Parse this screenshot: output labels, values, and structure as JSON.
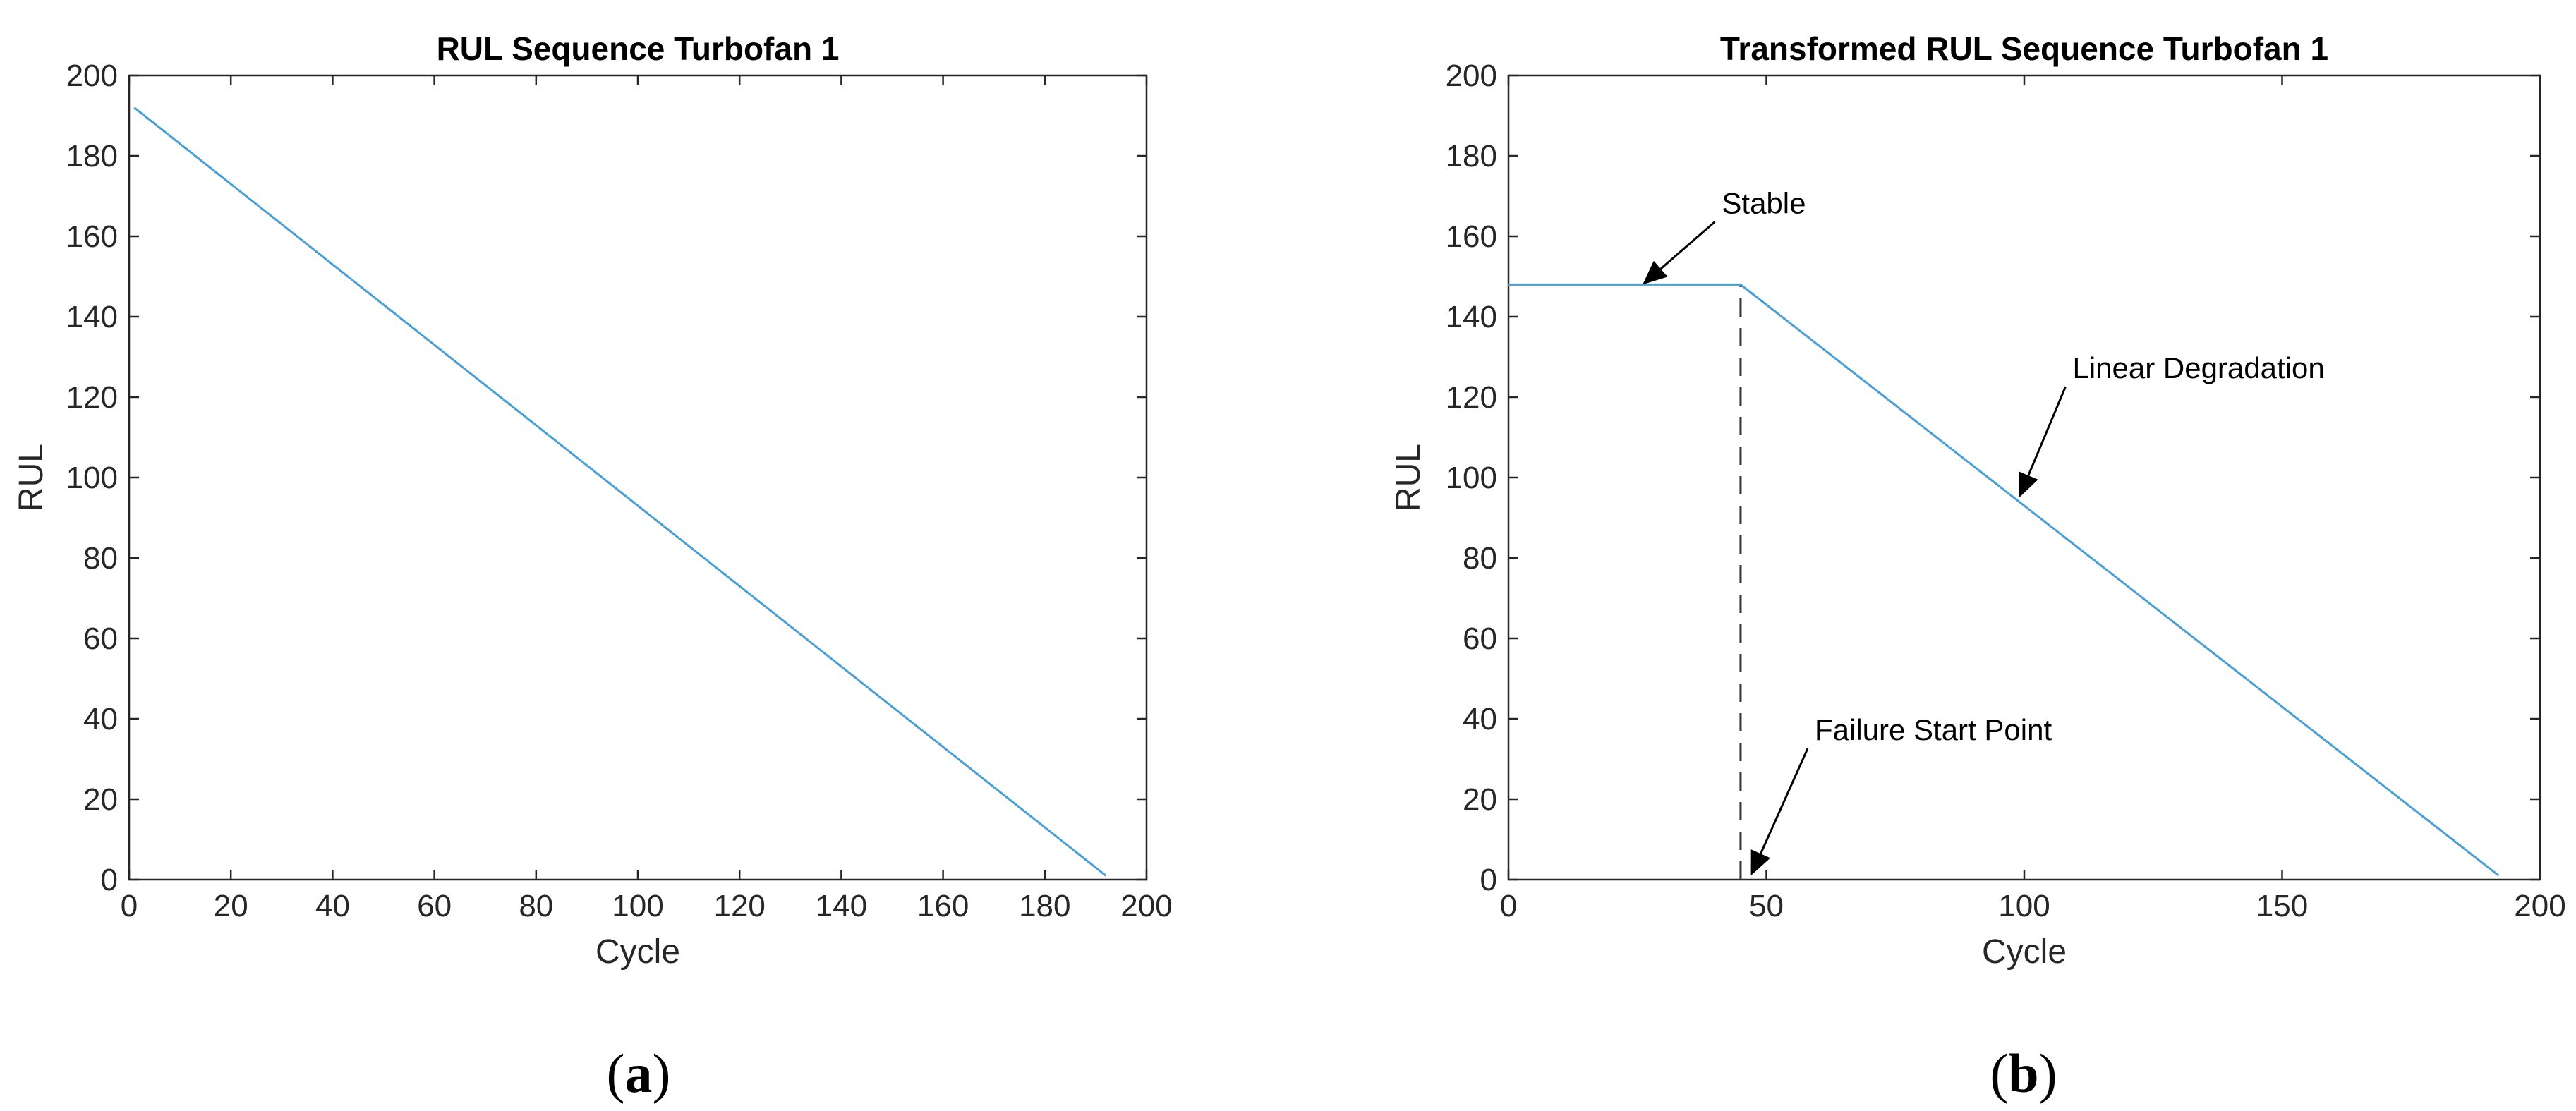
{
  "chart_data": [
    {
      "type": "line",
      "title": "RUL Sequence Turbofan 1",
      "xlabel": "Cycle",
      "ylabel": "RUL",
      "xlim": [
        0,
        200
      ],
      "ylim": [
        0,
        200
      ],
      "xticks": [
        0,
        20,
        40,
        60,
        80,
        100,
        120,
        140,
        160,
        180,
        200
      ],
      "yticks": [
        0,
        20,
        40,
        60,
        80,
        100,
        120,
        140,
        160,
        180,
        200
      ],
      "grid": false,
      "series": [
        {
          "color": "#4a9fd4",
          "x": [
            1,
            192
          ],
          "y": [
            192,
            1
          ]
        }
      ],
      "annotations": [],
      "panel_label": {
        "open": "(",
        "letter": "a",
        "close": ")"
      }
    },
    {
      "type": "line",
      "title": "Transformed RUL Sequence Turbofan 1",
      "xlabel": "Cycle",
      "ylabel": "RUL",
      "xlim": [
        0,
        200
      ],
      "ylim": [
        0,
        200
      ],
      "xticks": [
        0,
        50,
        100,
        150,
        200
      ],
      "yticks": [
        0,
        20,
        40,
        60,
        80,
        100,
        120,
        140,
        160,
        180,
        200
      ],
      "grid": false,
      "series": [
        {
          "color": "#4a9fd4",
          "x": [
            0,
            45,
            192
          ],
          "y": [
            148,
            148,
            1
          ]
        }
      ],
      "vline": {
        "x": 45,
        "y_from": 0,
        "y_to": 148,
        "style": "dashed"
      },
      "annotations": [
        {
          "text": "Stable",
          "point": {
            "x": 26,
            "y": 148
          },
          "text_at": {
            "x": 40,
            "y": 165
          }
        },
        {
          "text": "Linear Degradation",
          "point": {
            "x": 99,
            "y": 95
          },
          "text_at": {
            "x": 108,
            "y": 124
          }
        },
        {
          "text": "Failure Start Point",
          "point": {
            "x": 47,
            "y": 1
          },
          "text_at": {
            "x": 58,
            "y": 34
          }
        }
      ],
      "panel_label": {
        "open": "(",
        "letter": "b",
        "close": ")"
      }
    }
  ]
}
